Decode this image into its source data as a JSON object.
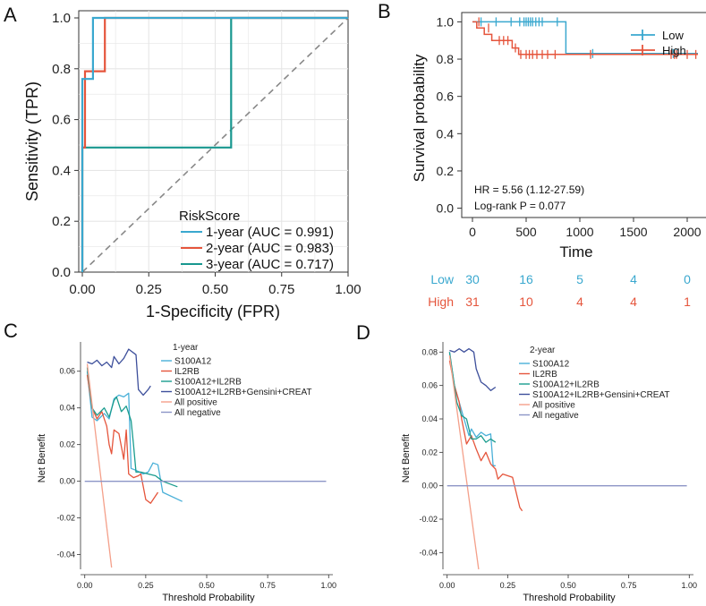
{
  "chart_data": [
    {
      "panel": "A",
      "type": "line",
      "title": "",
      "xlabel": "1-Specificity (FPR)",
      "ylabel": "Sensitivity (TPR)",
      "xlim": [
        0,
        1
      ],
      "ylim": [
        0,
        1
      ],
      "xticks": [
        0,
        0.25,
        0.5,
        0.75,
        1
      ],
      "xtick_labels": [
        "0.00",
        "0.25",
        "0.50",
        "0.75",
        "1.00"
      ],
      "yticks": [
        0,
        0.2,
        0.4,
        0.6,
        0.8,
        1
      ],
      "ytick_labels": [
        "0.0",
        "0.2",
        "0.4",
        "0.6",
        "0.8",
        "1.0"
      ],
      "grid": true,
      "legend_title": "RiskScore",
      "legend_position": "bottom-right",
      "series": [
        {
          "name": "1-year (AUC = 0.991)",
          "color": "#3aa8cf",
          "x": [
            0,
            0,
            0.04,
            0.04,
            1.0
          ],
          "y": [
            0,
            0.76,
            0.76,
            1.0,
            1.0
          ]
        },
        {
          "name": "2-year (AUC = 0.983)",
          "color": "#e5553c",
          "x": [
            0,
            0,
            0.01,
            0.01,
            0.085,
            0.085,
            1.0
          ],
          "y": [
            0,
            0.49,
            0.49,
            0.79,
            0.79,
            1.0,
            1.0
          ]
        },
        {
          "name": "3-year (AUC = 0.717)",
          "color": "#18978f",
          "x": [
            0,
            0,
            0.56,
            0.56,
            1.0
          ],
          "y": [
            0,
            0.49,
            0.49,
            1.0,
            1.0
          ]
        }
      ],
      "reference_line": {
        "x": [
          0,
          1
        ],
        "y": [
          0,
          1
        ],
        "color": "#888888"
      }
    },
    {
      "panel": "B",
      "type": "line",
      "xlabel": "Time",
      "ylabel": "Survival probability",
      "xlim": [
        -100,
        2200
      ],
      "ylim": [
        -0.05,
        1.05
      ],
      "xticks": [
        0,
        500,
        1000,
        1500,
        2000
      ],
      "xtick_labels": [
        "0",
        "500",
        "1000",
        "1500",
        "2000"
      ],
      "yticks": [
        0,
        0.2,
        0.4,
        0.6,
        0.8,
        1
      ],
      "ytick_labels": [
        "0.0",
        "0.2",
        "0.4",
        "0.6",
        "0.8",
        "1.0"
      ],
      "legend_position": "top-right",
      "annotations": [
        "HR = 5.56 (1.12-27.59)",
        "Log-rank P = 0.077"
      ],
      "series": [
        {
          "name": "Low",
          "color": "#3aa8cf",
          "x": [
            0,
            870,
            870,
            2100
          ],
          "y": [
            1.0,
            1.0,
            0.83,
            0.83
          ],
          "censor_x": [
            80,
            220,
            360,
            440,
            480,
            500,
            520,
            540,
            560,
            590,
            620,
            650,
            790,
            1120,
            1870,
            1900
          ],
          "censor_y": [
            1.0,
            1.0,
            1.0,
            1.0,
            1.0,
            1.0,
            1.0,
            1.0,
            1.0,
            1.0,
            1.0,
            1.0,
            1.0,
            0.83,
            0.83,
            0.83
          ]
        },
        {
          "name": "High",
          "color": "#e5553c",
          "x": [
            0,
            40,
            40,
            110,
            110,
            180,
            180,
            370,
            370,
            430,
            430,
            2100
          ],
          "y": [
            1.0,
            1.0,
            0.967,
            0.967,
            0.933,
            0.933,
            0.9,
            0.9,
            0.86,
            0.86,
            0.825,
            0.825
          ],
          "censor_x": [
            60,
            150,
            250,
            290,
            330,
            400,
            450,
            500,
            530,
            560,
            600,
            650,
            700,
            770,
            1100,
            1850,
            1880,
            1900,
            2000,
            2080
          ],
          "censor_y": [
            1.0,
            0.967,
            0.9,
            0.9,
            0.9,
            0.86,
            0.825,
            0.825,
            0.825,
            0.825,
            0.825,
            0.825,
            0.825,
            0.825,
            0.825,
            0.825,
            0.825,
            0.825,
            0.825,
            0.825
          ]
        }
      ],
      "risk_table": {
        "times": [
          0,
          500,
          1000,
          1500,
          2000
        ],
        "rows": [
          {
            "name": "Low",
            "color": "#3aa8cf",
            "values": [
              "30",
              "16",
              "5",
              "4",
              "0"
            ]
          },
          {
            "name": "High",
            "color": "#e5553c",
            "values": [
              "31",
              "10",
              "4",
              "4",
              "1"
            ]
          }
        ]
      }
    },
    {
      "panel": "C",
      "type": "line",
      "xlabel": "Threshold Probability",
      "ylabel": "Net Benefit",
      "xlim": [
        -0.01,
        1.01
      ],
      "ylim": [
        -0.048,
        0.075
      ],
      "xticks": [
        0,
        0.25,
        0.5,
        0.75,
        1
      ],
      "xtick_labels": [
        "0.00",
        "0.25",
        "0.50",
        "0.75",
        "1.00"
      ],
      "yticks": [
        -0.04,
        -0.02,
        0,
        0.02,
        0.04,
        0.06
      ],
      "ytick_labels": [
        "-0.04",
        "-0.02",
        "0.00",
        "0.02",
        "0.04",
        "0.06"
      ],
      "legend_title": "1-year",
      "legend_position": "top-right",
      "series": [
        {
          "name": "S100A12",
          "color": "#4ab0d8",
          "x": [
            0.01,
            0.03,
            0.05,
            0.08,
            0.1,
            0.12,
            0.14,
            0.16,
            0.18,
            0.19,
            0.21,
            0.24,
            0.26,
            0.28,
            0.3,
            0.32,
            0.4
          ],
          "y": [
            0.06,
            0.035,
            0.033,
            0.037,
            0.034,
            0.045,
            0.047,
            0.046,
            0.048,
            0.007,
            0.006,
            0.004,
            0.005,
            0.01,
            0.009,
            -0.006,
            -0.011
          ]
        },
        {
          "name": "IL2RB",
          "color": "#e5553c",
          "x": [
            0.01,
            0.03,
            0.05,
            0.07,
            0.09,
            0.1,
            0.11,
            0.12,
            0.14,
            0.16,
            0.17,
            0.18,
            0.2,
            0.22,
            0.23,
            0.25,
            0.27,
            0.3
          ],
          "y": [
            0.058,
            0.04,
            0.034,
            0.038,
            0.03,
            0.02,
            0.015,
            0.028,
            0.026,
            0.012,
            0.028,
            0.004,
            0.002,
            0.003,
            0.004,
            -0.01,
            -0.012,
            -0.006
          ]
        },
        {
          "name": "S100A12+IL2RB",
          "color": "#1a9c8e",
          "x": [
            0.01,
            0.03,
            0.05,
            0.08,
            0.1,
            0.12,
            0.13,
            0.15,
            0.17,
            0.19,
            0.2,
            0.21,
            0.23,
            0.26,
            0.29,
            0.32,
            0.38
          ],
          "y": [
            0.062,
            0.04,
            0.036,
            0.04,
            0.035,
            0.044,
            0.046,
            0.038,
            0.041,
            0.033,
            0.02,
            0.005,
            0.005,
            0.004,
            0.003,
            0.0,
            -0.003
          ]
        },
        {
          "name": "S100A12+IL2RB+Gensini+CREAT",
          "color": "#3d4f9b",
          "x": [
            0.01,
            0.03,
            0.05,
            0.07,
            0.09,
            0.11,
            0.12,
            0.14,
            0.16,
            0.18,
            0.21,
            0.22,
            0.24,
            0.26,
            0.27
          ],
          "y": [
            0.065,
            0.064,
            0.066,
            0.063,
            0.065,
            0.062,
            0.068,
            0.064,
            0.067,
            0.072,
            0.069,
            0.05,
            0.047,
            0.05,
            0.052
          ]
        },
        {
          "name": "All positive",
          "color": "#f4a08a",
          "x": [
            0.01,
            0.11
          ],
          "y": [
            0.064,
            -0.047
          ]
        },
        {
          "name": "All negative",
          "color": "#8c95c6",
          "x": [
            0.0,
            0.99
          ],
          "y": [
            0,
            0
          ]
        }
      ]
    },
    {
      "panel": "D",
      "type": "line",
      "xlabel": "Threshold Probability",
      "ylabel": "Net Benefit",
      "xlim": [
        -0.01,
        1.01
      ],
      "ylim": [
        -0.05,
        0.085
      ],
      "xticks": [
        0,
        0.25,
        0.5,
        0.75,
        1
      ],
      "xtick_labels": [
        "0.00",
        "0.25",
        "0.50",
        "0.75",
        "1.00"
      ],
      "yticks": [
        -0.04,
        -0.02,
        0,
        0.02,
        0.04,
        0.06,
        0.08
      ],
      "ytick_labels": [
        "-0.04",
        "-0.02",
        "0.00",
        "0.02",
        "0.04",
        "0.06",
        "0.08"
      ],
      "legend_title": "2-year",
      "legend_position": "top-right",
      "series": [
        {
          "name": "S100A12",
          "color": "#4ab0d8",
          "x": [
            0.01,
            0.03,
            0.05,
            0.07,
            0.09,
            0.1,
            0.12,
            0.14,
            0.16,
            0.18,
            0.19,
            0.2
          ],
          "y": [
            0.08,
            0.06,
            0.05,
            0.04,
            0.03,
            0.034,
            0.029,
            0.032,
            0.03,
            0.031,
            0.012,
            0.012
          ]
        },
        {
          "name": "IL2RB",
          "color": "#e5553c",
          "x": [
            0.01,
            0.03,
            0.05,
            0.06,
            0.08,
            0.1,
            0.12,
            0.14,
            0.16,
            0.18,
            0.2,
            0.21,
            0.23,
            0.27,
            0.3,
            0.31
          ],
          "y": [
            0.075,
            0.06,
            0.05,
            0.04,
            0.025,
            0.03,
            0.022,
            0.015,
            0.02,
            0.013,
            0.01,
            0.004,
            0.007,
            0.005,
            -0.013,
            -0.015
          ]
        },
        {
          "name": "S100A12+IL2RB",
          "color": "#1a9c8e",
          "x": [
            0.01,
            0.02,
            0.04,
            0.06,
            0.08,
            0.1,
            0.12,
            0.14,
            0.16,
            0.18,
            0.19,
            0.2
          ],
          "y": [
            0.08,
            0.07,
            0.05,
            0.042,
            0.04,
            0.028,
            0.028,
            0.03,
            0.026,
            0.028,
            0.027,
            0.026
          ]
        },
        {
          "name": "S100A12+IL2RB+Gensini+CREAT",
          "color": "#3d4f9b",
          "x": [
            0.01,
            0.03,
            0.05,
            0.07,
            0.09,
            0.11,
            0.12,
            0.13,
            0.14,
            0.16,
            0.18,
            0.2
          ],
          "y": [
            0.081,
            0.08,
            0.082,
            0.08,
            0.082,
            0.08,
            0.07,
            0.066,
            0.062,
            0.06,
            0.057,
            0.059
          ]
        },
        {
          "name": "All positive",
          "color": "#f4a08a",
          "x": [
            0.01,
            0.13
          ],
          "y": [
            0.078,
            -0.05
          ]
        },
        {
          "name": "All negative",
          "color": "#8c95c6",
          "x": [
            0.0,
            0.99
          ],
          "y": [
            0,
            0
          ]
        }
      ]
    }
  ],
  "panels": {
    "a": {
      "letter": "A",
      "legend_title": "RiskScore",
      "legend_labels": [
        "1-year (AUC = 0.991)",
        "2-year (AUC = 0.983)",
        "3-year (AUC = 0.717)"
      ]
    },
    "b": {
      "letter": "B",
      "legend_labels": [
        "Low",
        "High"
      ],
      "hr_text": "HR = 5.56 (1.12-27.59)",
      "p_text": "Log-rank P = 0.077"
    },
    "c": {
      "letter": "C",
      "legend_title": "1-year",
      "legend_labels": [
        "S100A12",
        "IL2RB",
        "S100A12+IL2RB",
        "S100A12+IL2RB+Gensini+CREAT",
        "All positive",
        "All negative"
      ]
    },
    "d": {
      "letter": "D",
      "legend_title": "2-year",
      "legend_labels": [
        "S100A12",
        "IL2RB",
        "S100A12+IL2RB",
        "S100A12+IL2RB+Gensini+CREAT",
        "All positive",
        "All negative"
      ]
    }
  }
}
